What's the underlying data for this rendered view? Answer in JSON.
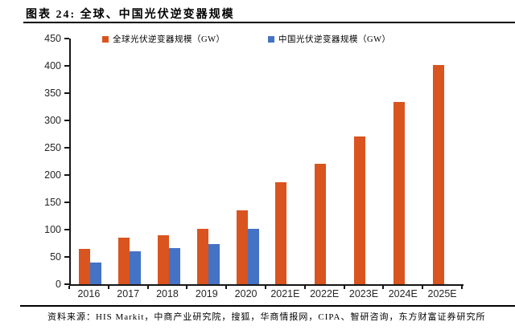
{
  "title": "图表 24: 全球、中国光伏逆变器规模",
  "source": "资料来源：HIS Markit，中商产业研究院，搜狐，华商情报网，CIPA、智研咨询，东方财富证券研究所",
  "colors": {
    "global_series": "#D9541E",
    "china_series": "#4472C4",
    "axis": "#161616",
    "text": "#262626"
  },
  "chart_data": {
    "type": "bar",
    "categories": [
      "2016",
      "2017",
      "2018",
      "2019",
      "2020",
      "2021E",
      "2022E",
      "2023E",
      "2024E",
      "2025E"
    ],
    "series": [
      {
        "name": "全球光伏逆变器规模（GW）",
        "color": "#D9541E",
        "values": [
          65,
          85,
          89,
          102,
          136,
          187,
          221,
          270,
          334,
          402
        ]
      },
      {
        "name": "中国光伏逆变器规模（GW）",
        "color": "#4472C4",
        "values": [
          40,
          61,
          66,
          73,
          101,
          null,
          null,
          null,
          null,
          null
        ]
      }
    ],
    "title": "图表 24: 全球、中国光伏逆变器规模",
    "xlabel": "",
    "ylabel": "",
    "ylim": [
      0,
      450
    ],
    "ytick_step": 50,
    "grid": false,
    "legend_position": "top"
  }
}
